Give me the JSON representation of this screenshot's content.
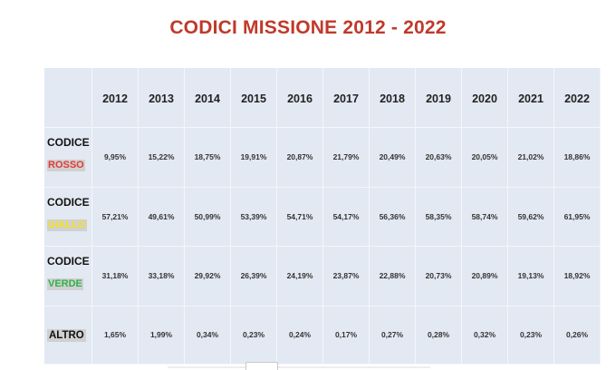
{
  "title": "CODICI MISSIONE 2012 - 2022",
  "colors": {
    "title": "#c0392b",
    "rosso": "#e23a36",
    "giallo": "#f5e21c",
    "verde": "#2fb24a",
    "tag_bg": "#d0d0d0",
    "table_bg": "#e3e9f2"
  },
  "chart_data": {
    "type": "table",
    "title": "CODICI MISSIONE 2012 - 2022",
    "columns": [
      "2012",
      "2013",
      "2014",
      "2015",
      "2016",
      "2017",
      "2018",
      "2019",
      "2020",
      "2021",
      "2022"
    ],
    "rows": [
      {
        "prefix": "CODICE",
        "label": "ROSSO",
        "color": "#e23a36",
        "values": [
          "9,95%",
          "15,22%",
          "18,75%",
          "19,91%",
          "20,87%",
          "21,79%",
          "20,49%",
          "20,63%",
          "20,05%",
          "21,02%",
          "18,86%"
        ]
      },
      {
        "prefix": "CODICE",
        "label": "GIALLO",
        "color": "#f5e21c",
        "values": [
          "57,21%",
          "49,61%",
          "50,99%",
          "53,39%",
          "54,71%",
          "54,17%",
          "56,36%",
          "58,35%",
          "58,74%",
          "59,62%",
          "61,95%"
        ]
      },
      {
        "prefix": "CODICE",
        "label": "VERDE",
        "color": "#2fb24a",
        "values": [
          "31,18%",
          "33,18%",
          "29,92%",
          "26,39%",
          "24,19%",
          "23,87%",
          "22,88%",
          "20,73%",
          "20,89%",
          "19,13%",
          "18,92%"
        ]
      },
      {
        "prefix": "",
        "label": "ALTRO",
        "color": "#111111",
        "values": [
          "1,65%",
          "1,99%",
          "0,34%",
          "0,23%",
          "0,24%",
          "0,17%",
          "0,27%",
          "0,28%",
          "0,32%",
          "0,23%",
          "0,26%"
        ]
      }
    ]
  }
}
